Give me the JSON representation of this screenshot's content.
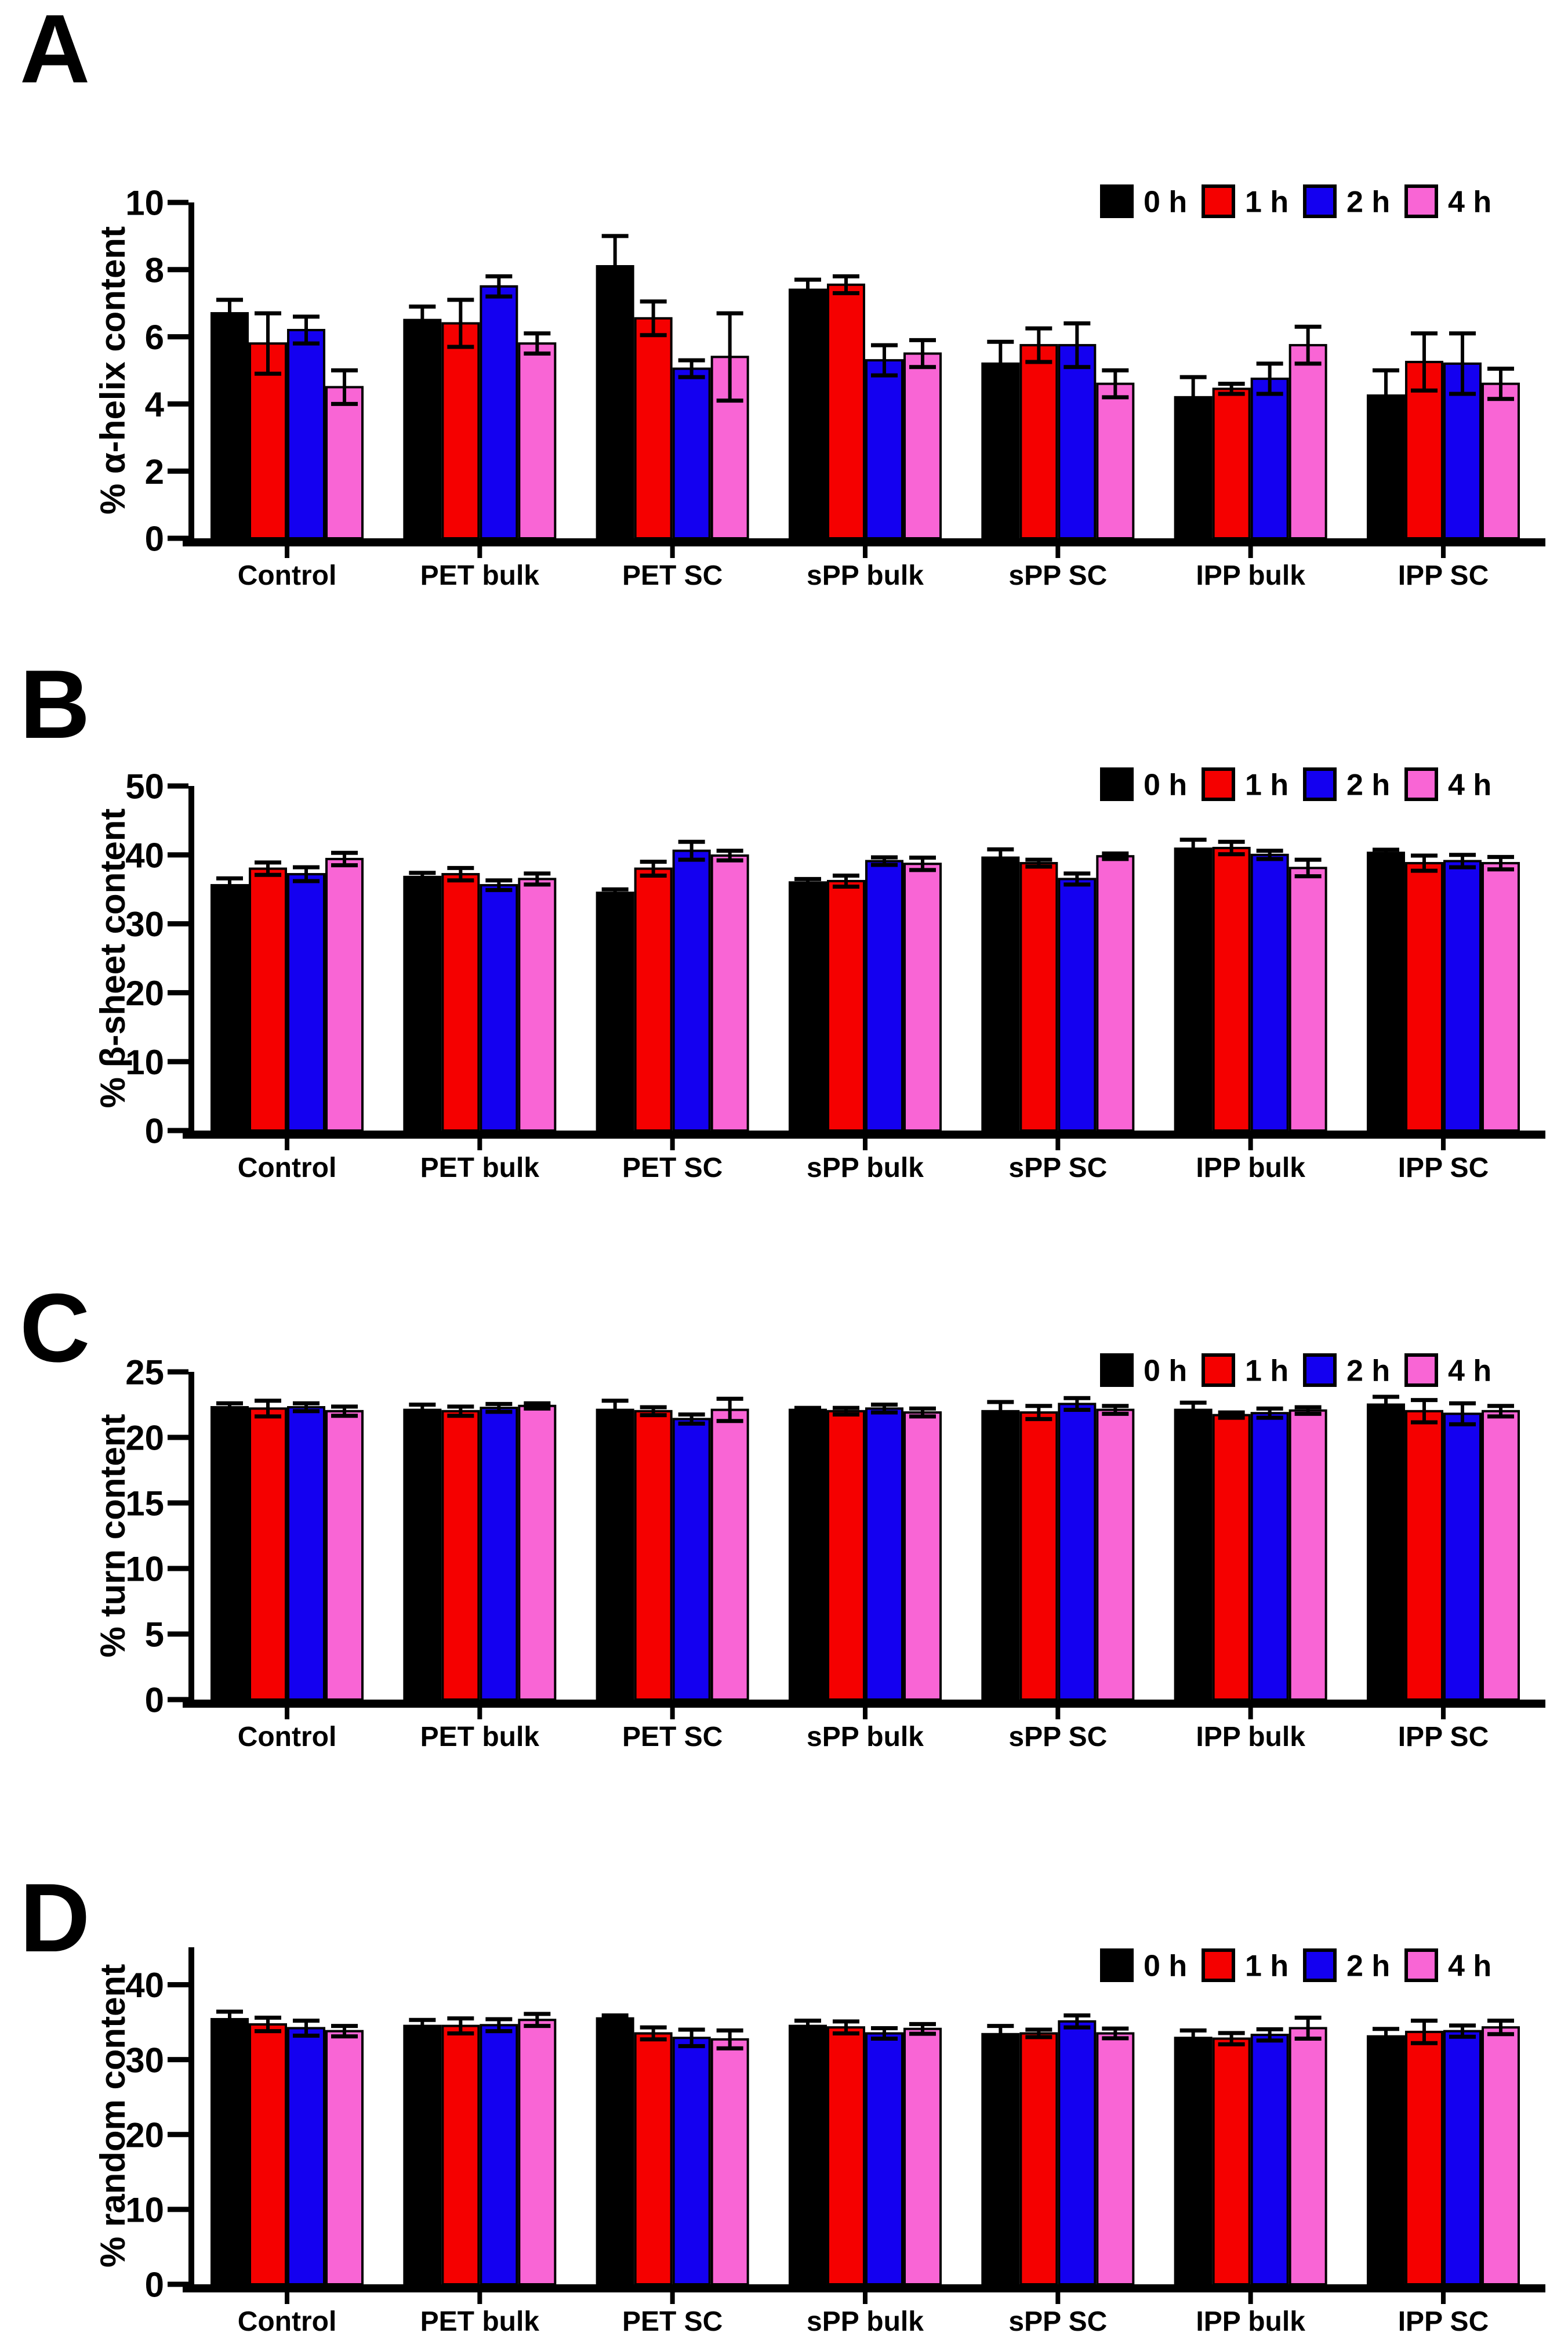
{
  "figure": {
    "background": "#FFFFFF",
    "categories": [
      "Control",
      "PET bulk",
      "PET SC",
      "sPP bulk",
      "sPP SC",
      "IPP bulk",
      "IPP SC"
    ],
    "legend_labels": [
      "0 h",
      "1 h",
      "2 h",
      "4 h"
    ],
    "series_colors": {
      "0 h": "#000000",
      "1 h": "#F50000",
      "2 h": "#1400F0",
      "4 h": "#F965D5"
    }
  },
  "chart_data": [
    {
      "panel": "A",
      "type": "bar",
      "ylabel": "% α-helix content",
      "ylim": [
        0,
        10
      ],
      "yticks": [
        0,
        2,
        4,
        6,
        8,
        10
      ],
      "legend_position": "top-right",
      "grid": false,
      "categories": [
        "Control",
        "PET bulk",
        "PET SC",
        "sPP bulk",
        "sPP SC",
        "IPP bulk",
        "IPP SC"
      ],
      "series": [
        {
          "name": "0 h",
          "color": "#000000",
          "values": [
            6.7,
            6.5,
            8.1,
            7.4,
            5.2,
            4.2,
            4.25
          ],
          "errors": [
            0.4,
            0.4,
            0.9,
            0.3,
            0.65,
            0.6,
            0.75
          ]
        },
        {
          "name": "1 h",
          "color": "#F50000",
          "values": [
            5.8,
            6.4,
            6.55,
            7.55,
            5.75,
            4.45,
            5.25
          ],
          "errors": [
            0.9,
            0.7,
            0.5,
            0.25,
            0.5,
            0.15,
            0.85
          ]
        },
        {
          "name": "2 h",
          "color": "#1400F0",
          "values": [
            6.2,
            7.5,
            5.05,
            5.3,
            5.75,
            4.75,
            5.2
          ],
          "errors": [
            0.4,
            0.3,
            0.25,
            0.45,
            0.65,
            0.45,
            0.9
          ]
        },
        {
          "name": "4 h",
          "color": "#F965D5",
          "values": [
            4.5,
            5.8,
            5.4,
            5.5,
            4.6,
            5.75,
            4.6
          ],
          "errors": [
            0.5,
            0.3,
            1.3,
            0.4,
            0.4,
            0.55,
            0.45
          ]
        }
      ]
    },
    {
      "panel": "B",
      "type": "bar",
      "ylabel": "% β-sheet content",
      "ylim": [
        0,
        50
      ],
      "yticks": [
        0,
        10,
        20,
        30,
        40,
        50
      ],
      "legend_position": "top-right",
      "grid": false,
      "categories": [
        "Control",
        "PET bulk",
        "PET SC",
        "sPP bulk",
        "sPP SC",
        "IPP bulk",
        "IPP SC"
      ],
      "series": [
        {
          "name": "0 h",
          "color": "#000000",
          "values": [
            35.6,
            36.8,
            34.5,
            36.0,
            39.6,
            40.9,
            40.3
          ],
          "errors": [
            1.0,
            0.6,
            0.5,
            0.5,
            1.2,
            1.3,
            0.45
          ]
        },
        {
          "name": "1 h",
          "color": "#F50000",
          "values": [
            38.0,
            37.2,
            38.0,
            36.2,
            38.8,
            41.0,
            38.8
          ],
          "errors": [
            0.9,
            0.9,
            1.0,
            0.8,
            0.5,
            0.9,
            1.1
          ]
        },
        {
          "name": "2 h",
          "color": "#1400F0",
          "values": [
            37.2,
            35.6,
            40.6,
            39.1,
            36.5,
            40.0,
            39.1
          ],
          "errors": [
            1.0,
            0.7,
            1.3,
            0.55,
            0.8,
            0.6,
            0.9
          ]
        },
        {
          "name": "4 h",
          "color": "#F965D5",
          "values": [
            39.4,
            36.5,
            39.9,
            38.7,
            39.8,
            38.1,
            38.8
          ],
          "errors": [
            0.9,
            0.8,
            0.7,
            0.9,
            0.4,
            1.2,
            0.9
          ]
        }
      ]
    },
    {
      "panel": "C",
      "type": "bar",
      "ylabel": "% turn content",
      "ylim": [
        0,
        25
      ],
      "yticks": [
        0,
        5,
        10,
        15,
        20,
        25
      ],
      "legend_position": "top-right",
      "grid": false,
      "categories": [
        "Control",
        "PET bulk",
        "PET SC",
        "sPP bulk",
        "sPP SC",
        "IPP bulk",
        "IPP SC"
      ],
      "series": [
        {
          "name": "0 h",
          "color": "#000000",
          "values": [
            22.3,
            22.1,
            22.1,
            22.1,
            22.0,
            22.1,
            22.5
          ],
          "errors": [
            0.3,
            0.4,
            0.7,
            0.15,
            0.7,
            0.55,
            0.6
          ]
        },
        {
          "name": "1 h",
          "color": "#F50000",
          "values": [
            22.2,
            22.0,
            22.0,
            22.0,
            21.9,
            21.7,
            22.0
          ],
          "errors": [
            0.6,
            0.35,
            0.3,
            0.25,
            0.5,
            0.2,
            0.85
          ]
        },
        {
          "name": "2 h",
          "color": "#1400F0",
          "values": [
            22.3,
            22.25,
            21.4,
            22.2,
            22.55,
            21.85,
            21.8
          ],
          "errors": [
            0.3,
            0.3,
            0.35,
            0.3,
            0.45,
            0.35,
            0.8
          ]
        },
        {
          "name": "4 h",
          "color": "#F965D5",
          "values": [
            22.0,
            22.4,
            22.1,
            21.9,
            22.1,
            22.05,
            22.0
          ],
          "errors": [
            0.35,
            0.2,
            0.85,
            0.3,
            0.3,
            0.25,
            0.4
          ]
        }
      ]
    },
    {
      "panel": "D",
      "type": "bar",
      "ylabel": "% random content",
      "ylim": [
        0,
        45
      ],
      "yticks": [
        0,
        10,
        20,
        30,
        40
      ],
      "legend_position": "top-right",
      "grid": false,
      "categories": [
        "Control",
        "PET bulk",
        "PET SC",
        "sPP bulk",
        "sPP SC",
        "IPP bulk",
        "IPP SC"
      ],
      "series": [
        {
          "name": "0 h",
          "color": "#000000",
          "values": [
            35.4,
            34.5,
            35.5,
            34.5,
            33.4,
            32.9,
            33.1
          ],
          "errors": [
            1.0,
            0.8,
            0.4,
            0.7,
            1.1,
            1.0,
            1.0
          ]
        },
        {
          "name": "1 h",
          "color": "#F50000",
          "values": [
            34.7,
            34.5,
            33.5,
            34.3,
            33.5,
            32.8,
            33.7
          ],
          "errors": [
            0.9,
            1.0,
            0.8,
            0.8,
            0.5,
            0.75,
            1.5
          ]
        },
        {
          "name": "2 h",
          "color": "#1400F0",
          "values": [
            34.2,
            34.6,
            32.9,
            33.5,
            35.1,
            33.3,
            33.8
          ],
          "errors": [
            1.0,
            0.8,
            1.1,
            0.7,
            0.8,
            0.75,
            0.75
          ]
        },
        {
          "name": "4 h",
          "color": "#F965D5",
          "values": [
            33.8,
            35.3,
            32.7,
            34.1,
            33.5,
            34.2,
            34.3
          ],
          "errors": [
            0.7,
            0.8,
            1.2,
            0.65,
            0.65,
            1.4,
            0.9
          ]
        }
      ]
    }
  ]
}
